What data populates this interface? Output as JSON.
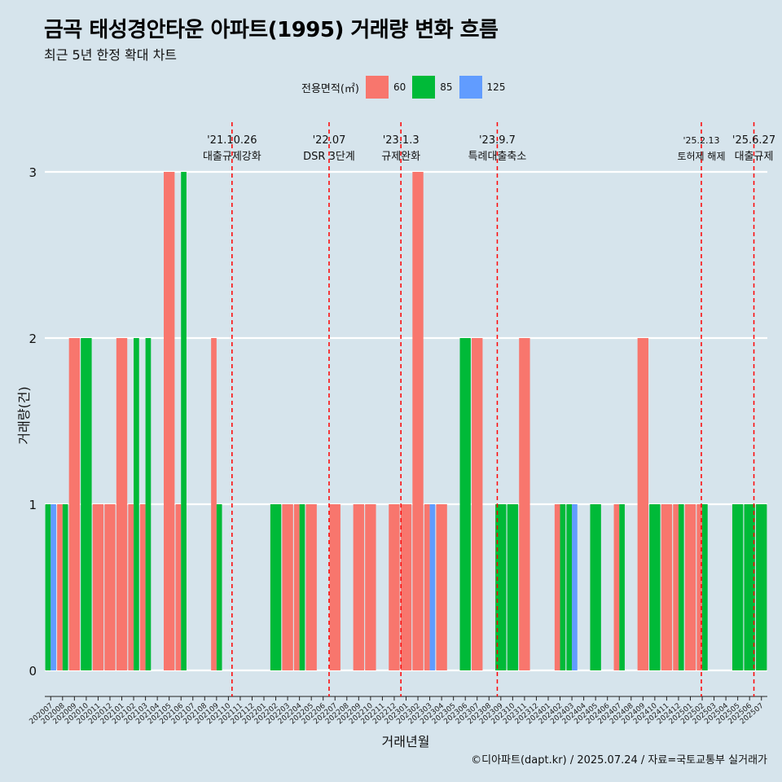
{
  "title": "금곡 태성경안타운 아파트(1995) 거래량 변화 흐름",
  "subtitle": "최근 5년 한정 확대 차트",
  "caption": "©디아파트(dapt.kr) / 2025.07.24 / 자료=국토교통부 실거래가",
  "chart_data": {
    "type": "bar",
    "xlabel": "거래년월",
    "ylabel": "거래량(건)",
    "ylim": [
      0,
      3
    ],
    "yticks": [
      0,
      1,
      2,
      3
    ],
    "grid": "horizontal",
    "legend": {
      "title": "전용면적(㎡)",
      "position": "top",
      "entries": [
        {
          "name": "60",
          "color": "#F8766D"
        },
        {
          "name": "85",
          "color": "#00BA38"
        },
        {
          "name": "125",
          "color": "#619CFF"
        }
      ]
    },
    "categories": [
      "202007",
      "202008",
      "202009",
      "202010",
      "202011",
      "202012",
      "202101",
      "202102",
      "202103",
      "202104",
      "202105",
      "202106",
      "202107",
      "202108",
      "202109",
      "202110",
      "202111",
      "202112",
      "202201",
      "202202",
      "202203",
      "202204",
      "202205",
      "202206",
      "202207",
      "202208",
      "202209",
      "202210",
      "202211",
      "202212",
      "202301",
      "202302",
      "202303",
      "202304",
      "202305",
      "202306",
      "202307",
      "202308",
      "202309",
      "202310",
      "202311",
      "202312",
      "202401",
      "202402",
      "202403",
      "202404",
      "202405",
      "202406",
      "202407",
      "202408",
      "202409",
      "202410",
      "202411",
      "202412",
      "202501",
      "202502",
      "202503",
      "202504",
      "202505",
      "202506",
      "202507"
    ],
    "series": [
      {
        "name": "60",
        "color": "#F8766D",
        "values": [
          0,
          1,
          2,
          0,
          1,
          1,
          2,
          1,
          1,
          0,
          3,
          1,
          0,
          0,
          2,
          0,
          0,
          0,
          0,
          0,
          1,
          1,
          1,
          0,
          1,
          0,
          1,
          1,
          0,
          1,
          1,
          3,
          1,
          1,
          0,
          0,
          2,
          0,
          0,
          0,
          2,
          0,
          0,
          1,
          0,
          0,
          0,
          0,
          1,
          0,
          2,
          0,
          1,
          1,
          1,
          1,
          0,
          0,
          0,
          0,
          0
        ]
      },
      {
        "name": "85",
        "color": "#00BA38",
        "values": [
          1,
          1,
          0,
          2,
          0,
          0,
          0,
          2,
          2,
          0,
          0,
          3,
          0,
          0,
          1,
          0,
          0,
          0,
          0,
          1,
          0,
          1,
          0,
          0,
          0,
          0,
          0,
          0,
          0,
          0,
          0,
          0,
          0,
          0,
          0,
          2,
          0,
          0,
          1,
          1,
          0,
          0,
          0,
          1,
          1,
          0,
          1,
          0,
          1,
          0,
          0,
          1,
          0,
          1,
          0,
          1,
          0,
          0,
          1,
          1,
          1
        ]
      },
      {
        "name": "125",
        "color": "#619CFF",
        "values": [
          1,
          0,
          0,
          0,
          0,
          0,
          0,
          0,
          0,
          0,
          0,
          0,
          0,
          0,
          0,
          0,
          0,
          0,
          0,
          0,
          0,
          0,
          0,
          0,
          0,
          0,
          0,
          0,
          0,
          0,
          0,
          0,
          1,
          0,
          0,
          0,
          0,
          0,
          0,
          0,
          0,
          0,
          0,
          0,
          1,
          0,
          0,
          0,
          0,
          0,
          0,
          0,
          0,
          0,
          0,
          0,
          0,
          0,
          0,
          0,
          0
        ]
      }
    ],
    "events": [
      {
        "date": "2021-10-26",
        "label1": "'21.10.26",
        "label2": "대출규제강화"
      },
      {
        "date": "2022-07-01",
        "label1": "'22.07",
        "label2": "DSR 3단계"
      },
      {
        "date": "2023-01-03",
        "label1": "'23.1.3",
        "label2": "규제완화"
      },
      {
        "date": "2023-09-07",
        "label1": "'23.9.7",
        "label2": "특례대출축소"
      },
      {
        "date": "2025-02-13",
        "label1": "'25.2.13",
        "label2": "토허제 해제"
      },
      {
        "date": "2025-06-27",
        "label1": "'25.6.27",
        "label2": "대출규제"
      }
    ]
  }
}
